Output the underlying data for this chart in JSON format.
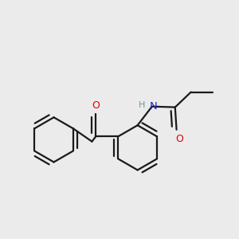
{
  "background_color": "#ebebeb",
  "bond_color": "#1a1a1a",
  "oxygen_color": "#dd0000",
  "nitrogen_color": "#2222cc",
  "hydrogen_color": "#6b9898",
  "bond_width": 1.6,
  "figsize": [
    3.0,
    3.0
  ],
  "dpi": 100,
  "xlim": [
    -0.82,
    0.82
  ],
  "ylim": [
    -0.72,
    0.68
  ]
}
